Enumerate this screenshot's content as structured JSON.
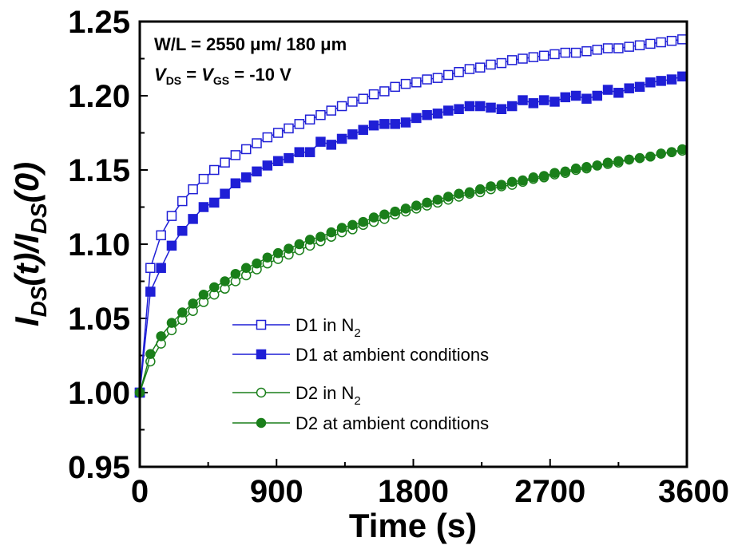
{
  "chart_data": {
    "type": "scatter",
    "title": "",
    "xlabel": "Time (s)",
    "ylabel": "IDS(t)/IDS(0)",
    "ylabel_parts": {
      "a": "I",
      "sub1": "DS",
      "b": "(t)/",
      "c": "I",
      "sub2": "DS",
      "d": "(0)"
    },
    "xlim": [
      0,
      3600
    ],
    "ylim": [
      0.95,
      1.25
    ],
    "xticks": [
      0,
      900,
      1800,
      2700,
      3600
    ],
    "yticks": [
      0.95,
      1.0,
      1.05,
      1.1,
      1.15,
      1.2,
      1.25
    ],
    "xtick_labels": [
      "0",
      "900",
      "1800",
      "2700",
      "3600"
    ],
    "ytick_labels": [
      "0.95",
      "1.00",
      "1.05",
      "1.10",
      "1.15",
      "1.20",
      "1.25"
    ],
    "legend_position": "bottom-center",
    "annotations": {
      "line1": "W/L = 2550 μm/ 180 μm",
      "line2_v1": "V",
      "line2_sub1": "DS",
      "line2_eq": " = ",
      "line2_v2": "V",
      "line2_sub2": "GS",
      "line2_rest": " = -10 V"
    },
    "series": [
      {
        "name": "D1 in N2",
        "name_main": "D1 in N",
        "name_sub": "2",
        "color": "#1f1fd6",
        "marker": "square",
        "filled": false,
        "x": [
          0,
          70,
          140,
          210,
          280,
          350,
          420,
          490,
          560,
          630,
          700,
          770,
          840,
          910,
          980,
          1050,
          1120,
          1190,
          1260,
          1330,
          1400,
          1470,
          1540,
          1610,
          1680,
          1750,
          1820,
          1890,
          1960,
          2030,
          2100,
          2170,
          2240,
          2310,
          2380,
          2450,
          2520,
          2590,
          2660,
          2730,
          2800,
          2870,
          2940,
          3010,
          3080,
          3150,
          3220,
          3290,
          3360,
          3430,
          3500,
          3570
        ],
        "y": [
          1.0,
          1.084,
          1.106,
          1.119,
          1.129,
          1.137,
          1.144,
          1.15,
          1.155,
          1.16,
          1.164,
          1.168,
          1.172,
          1.175,
          1.178,
          1.181,
          1.184,
          1.187,
          1.19,
          1.193,
          1.196,
          1.198,
          1.201,
          1.203,
          1.206,
          1.208,
          1.209,
          1.211,
          1.212,
          1.214,
          1.216,
          1.218,
          1.219,
          1.221,
          1.222,
          1.224,
          1.225,
          1.226,
          1.227,
          1.228,
          1.229,
          1.229,
          1.23,
          1.231,
          1.232,
          1.232,
          1.233,
          1.234,
          1.235,
          1.236,
          1.237,
          1.238
        ]
      },
      {
        "name": "D1 at ambient conditions",
        "name_main": "D1 at ambient conditions",
        "name_sub": "",
        "color": "#1f1fd6",
        "marker": "square",
        "filled": true,
        "x": [
          0,
          70,
          140,
          210,
          280,
          350,
          420,
          490,
          560,
          630,
          700,
          770,
          840,
          910,
          980,
          1050,
          1120,
          1190,
          1260,
          1330,
          1400,
          1470,
          1540,
          1610,
          1680,
          1750,
          1820,
          1890,
          1960,
          2030,
          2100,
          2170,
          2240,
          2310,
          2380,
          2450,
          2520,
          2590,
          2660,
          2730,
          2800,
          2870,
          2940,
          3010,
          3080,
          3150,
          3220,
          3290,
          3360,
          3430,
          3500,
          3570
        ],
        "y": [
          1.0,
          1.068,
          1.084,
          1.099,
          1.109,
          1.117,
          1.125,
          1.128,
          1.134,
          1.141,
          1.145,
          1.149,
          1.153,
          1.156,
          1.158,
          1.162,
          1.162,
          1.169,
          1.167,
          1.171,
          1.174,
          1.177,
          1.18,
          1.181,
          1.181,
          1.182,
          1.185,
          1.187,
          1.188,
          1.19,
          1.191,
          1.193,
          1.193,
          1.192,
          1.191,
          1.193,
          1.197,
          1.195,
          1.197,
          1.196,
          1.199,
          1.2,
          1.198,
          1.2,
          1.204,
          1.202,
          1.205,
          1.206,
          1.209,
          1.21,
          1.211,
          1.213
        ]
      },
      {
        "name": "D2 in N2",
        "name_main": "D2 in N",
        "name_sub": "2",
        "color": "#1a7f1a",
        "marker": "circle",
        "filled": false,
        "x": [
          0,
          70,
          140,
          210,
          280,
          350,
          420,
          490,
          560,
          630,
          700,
          770,
          840,
          910,
          980,
          1050,
          1120,
          1190,
          1260,
          1330,
          1400,
          1470,
          1540,
          1610,
          1680,
          1750,
          1820,
          1890,
          1960,
          2030,
          2100,
          2170,
          2240,
          2310,
          2380,
          2450,
          2520,
          2590,
          2660,
          2730,
          2800,
          2870,
          2940,
          3010,
          3080,
          3150,
          3220,
          3290,
          3360,
          3430,
          3500,
          3570
        ],
        "y": [
          1.0,
          1.021,
          1.033,
          1.042,
          1.049,
          1.055,
          1.061,
          1.066,
          1.07,
          1.075,
          1.079,
          1.083,
          1.087,
          1.09,
          1.093,
          1.096,
          1.099,
          1.102,
          1.105,
          1.108,
          1.11,
          1.113,
          1.115,
          1.117,
          1.12,
          1.122,
          1.124,
          1.126,
          1.128,
          1.13,
          1.132,
          1.134,
          1.135,
          1.137,
          1.139,
          1.14,
          1.142,
          1.144,
          1.145,
          1.147,
          1.148,
          1.15,
          1.151,
          1.153,
          1.154,
          1.155,
          1.157,
          1.158,
          1.159,
          1.161,
          1.162,
          1.163
        ]
      },
      {
        "name": "D2 at ambient conditions",
        "name_main": "D2 at ambient conditions",
        "name_sub": "",
        "color": "#1a7f1a",
        "marker": "circle",
        "filled": true,
        "x": [
          0,
          70,
          140,
          210,
          280,
          350,
          420,
          490,
          560,
          630,
          700,
          770,
          840,
          910,
          980,
          1050,
          1120,
          1190,
          1260,
          1330,
          1400,
          1470,
          1540,
          1610,
          1680,
          1750,
          1820,
          1890,
          1960,
          2030,
          2100,
          2170,
          2240,
          2310,
          2380,
          2450,
          2520,
          2590,
          2660,
          2730,
          2800,
          2870,
          2940,
          3010,
          3080,
          3150,
          3220,
          3290,
          3360,
          3430,
          3500,
          3570
        ],
        "y": [
          1.0,
          1.026,
          1.038,
          1.047,
          1.054,
          1.06,
          1.066,
          1.071,
          1.075,
          1.08,
          1.084,
          1.087,
          1.091,
          1.094,
          1.097,
          1.1,
          1.103,
          1.105,
          1.108,
          1.111,
          1.113,
          1.115,
          1.118,
          1.12,
          1.122,
          1.124,
          1.126,
          1.128,
          1.13,
          1.132,
          1.134,
          1.135,
          1.137,
          1.139,
          1.14,
          1.142,
          1.143,
          1.145,
          1.146,
          1.148,
          1.149,
          1.151,
          1.152,
          1.153,
          1.155,
          1.156,
          1.157,
          1.158,
          1.159,
          1.161,
          1.162,
          1.164
        ]
      }
    ]
  }
}
